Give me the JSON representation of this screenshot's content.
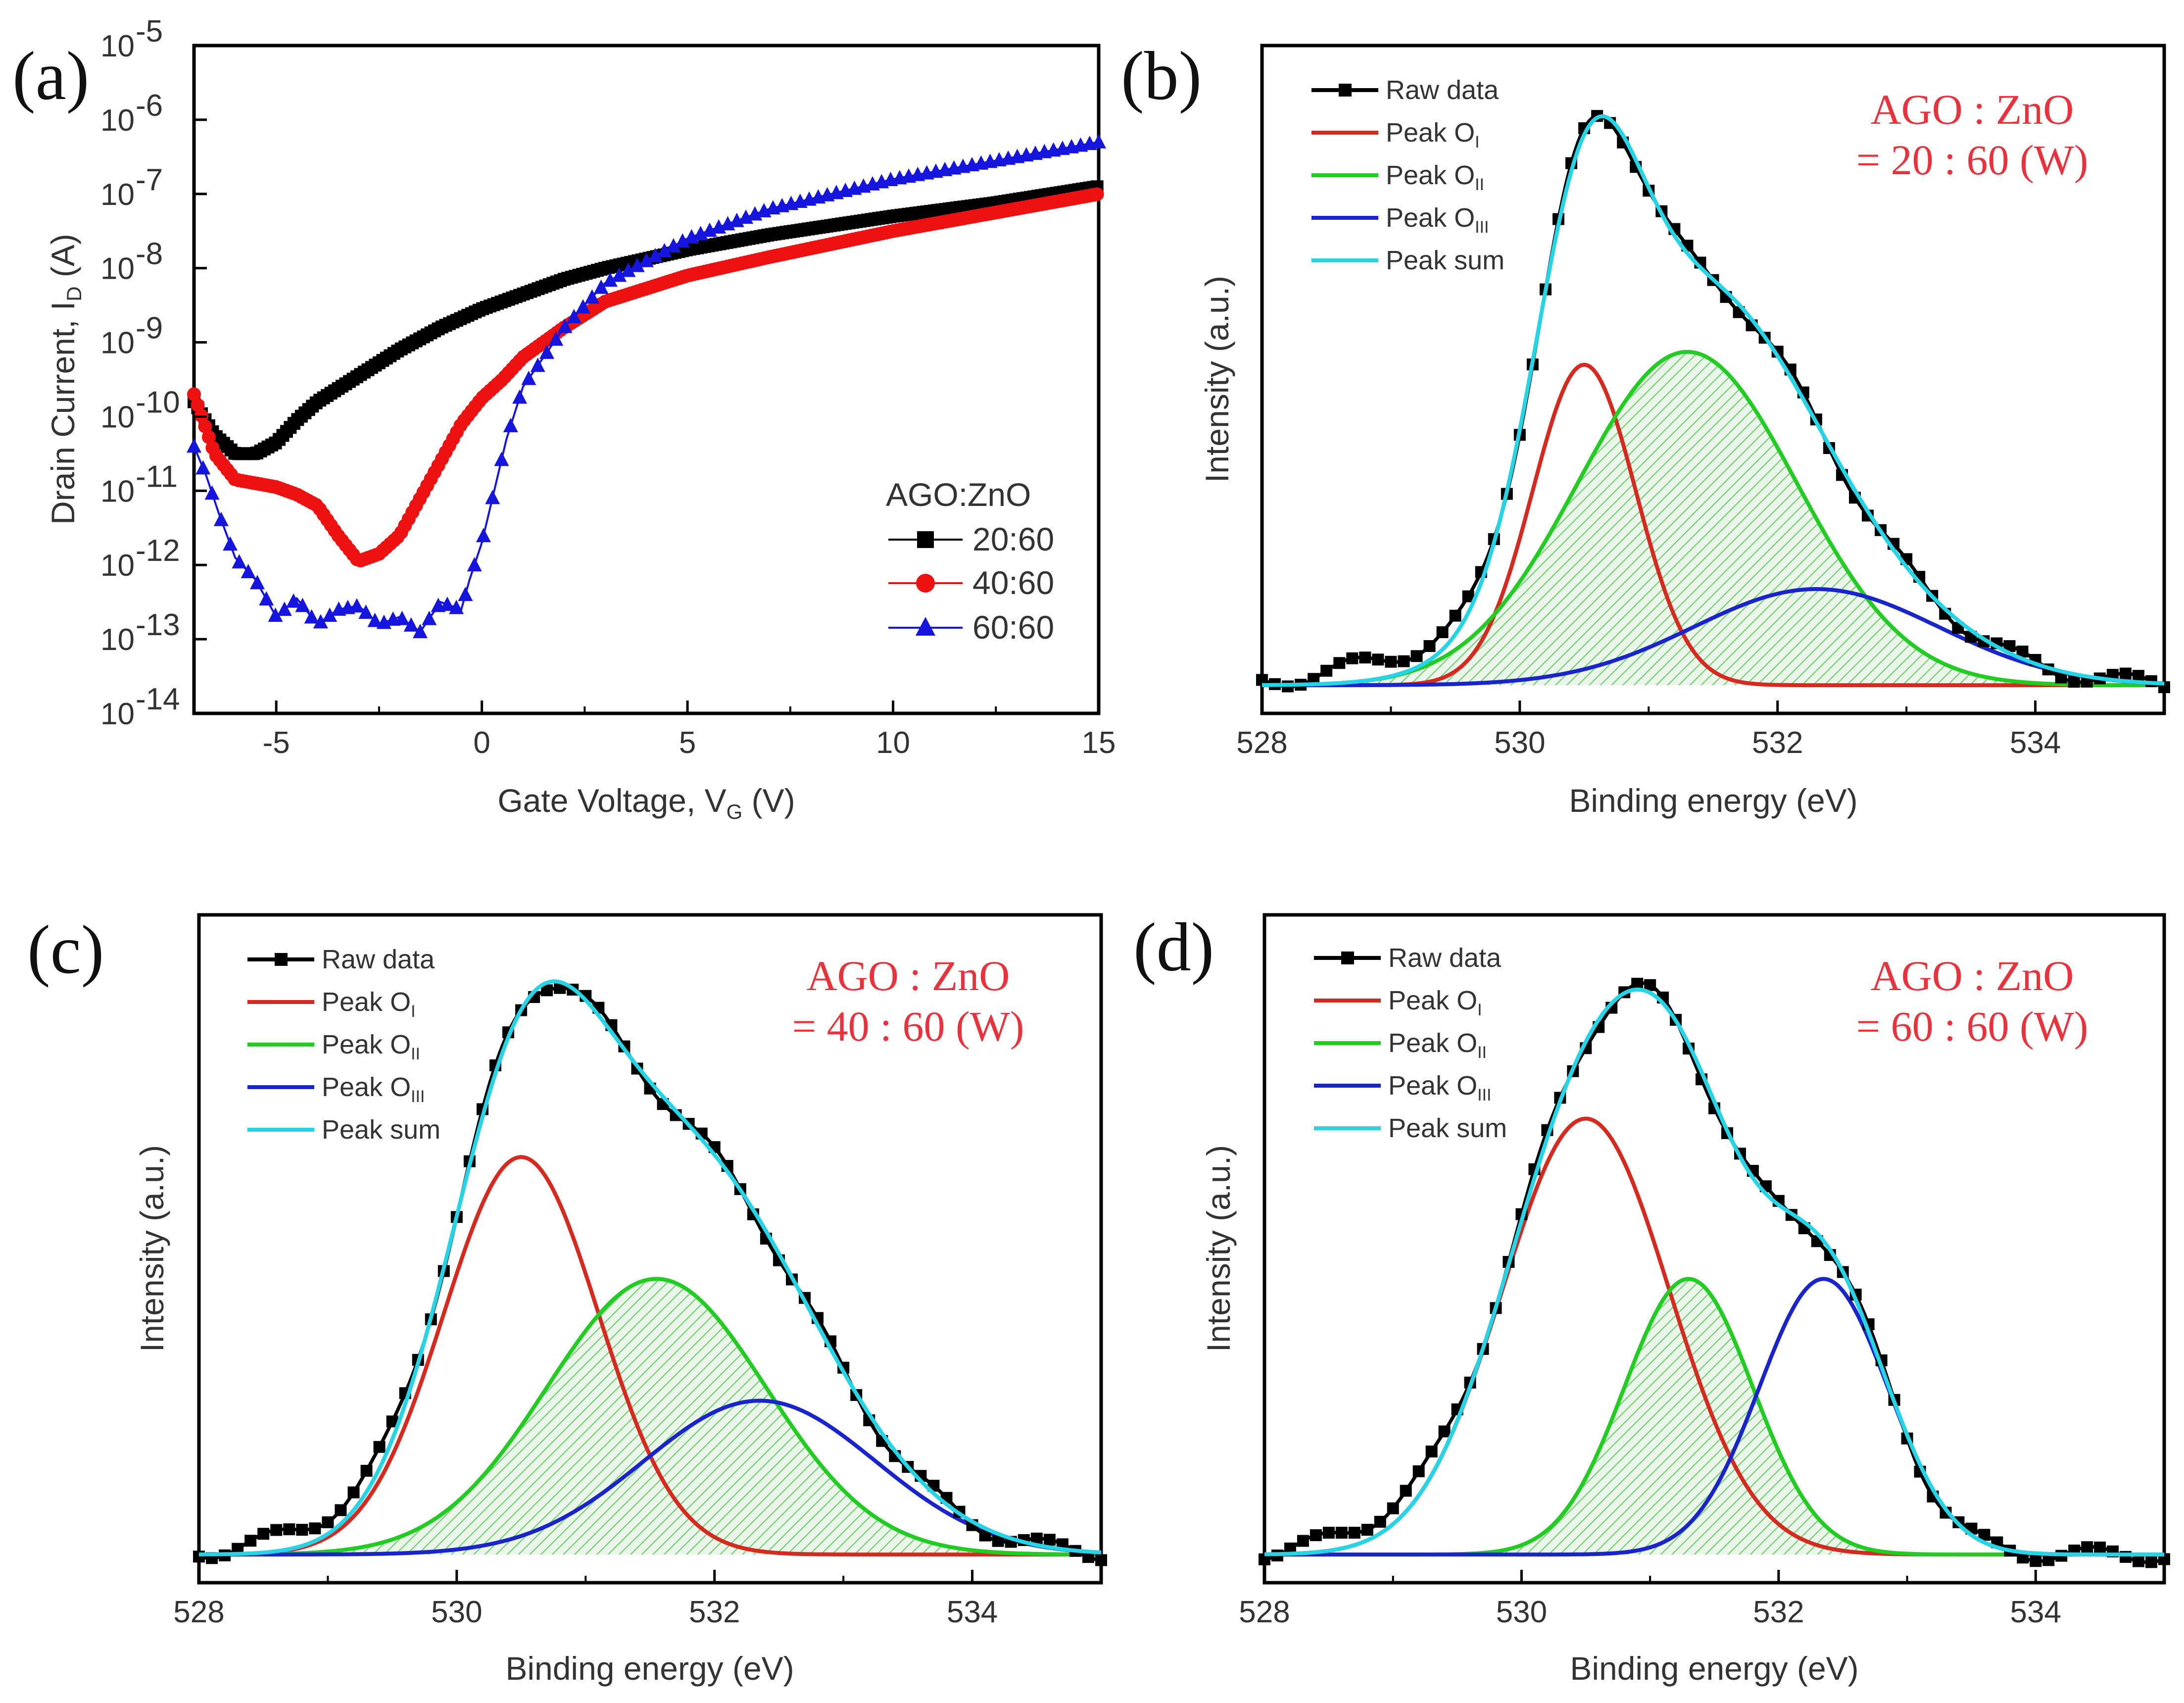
{
  "colors": {
    "raw": "#000000",
    "peak1": "#d42a1f",
    "peak2": "#22cc22",
    "peak3": "#1a25c9",
    "sum": "#26d4e6",
    "annotation": "#e8323c",
    "red_series": "#ee1111",
    "blue_series": "#1515dd",
    "hatch": "#7fcf7f"
  },
  "chart_data": [
    {
      "id": "a",
      "type": "line",
      "panel_label": "(a)",
      "scale_y": "log",
      "xlabel_main": "Gate Voltage, V",
      "xlabel_sub": "G",
      "xlabel_end": " (V)",
      "ylabel_main": "Drain Current, I",
      "ylabel_sub": "D",
      "ylabel_end": " (A)",
      "xlim": [
        -7,
        15
      ],
      "ylim_exp": [
        -14,
        -5
      ],
      "x_ticks": [
        -5,
        0,
        5,
        10,
        15
      ],
      "x_tick_labels": [
        "-5",
        "0",
        "5",
        "10",
        "15"
      ],
      "y_tick_exponents": [
        -14,
        -13,
        -12,
        -11,
        -10,
        -9,
        -8,
        -7,
        -6,
        -5
      ],
      "y_tick_base": "10",
      "y_tick_exp_labels": [
        "-14",
        "-13",
        "-12",
        "-11",
        "-10",
        "-9",
        "-8",
        "-7",
        "-6",
        "-5"
      ],
      "legend_title": "AGO:ZnO",
      "series": [
        {
          "name": "20:60",
          "marker": "square",
          "color": "#000000",
          "points": [
            [
              -7,
              -9.8
            ],
            [
              -6.5,
              -10.25
            ],
            [
              -6,
              -10.5
            ],
            [
              -5.5,
              -10.5
            ],
            [
              -5,
              -10.35
            ],
            [
              -4.5,
              -10.05
            ],
            [
              -4,
              -9.8
            ],
            [
              -3,
              -9.45
            ],
            [
              -2,
              -9.1
            ],
            [
              -1,
              -8.8
            ],
            [
              0,
              -8.55
            ],
            [
              1,
              -8.35
            ],
            [
              2,
              -8.15
            ],
            [
              3,
              -8.0
            ],
            [
              5,
              -7.75
            ],
            [
              7,
              -7.55
            ],
            [
              10,
              -7.3
            ],
            [
              12.5,
              -7.12
            ],
            [
              15,
              -6.9
            ]
          ]
        },
        {
          "name": "40:60",
          "marker": "circle",
          "color": "#ee1111",
          "points": [
            [
              -7,
              -9.7
            ],
            [
              -6.5,
              -10.5
            ],
            [
              -6,
              -10.85
            ],
            [
              -5,
              -10.95
            ],
            [
              -4.5,
              -11.05
            ],
            [
              -4,
              -11.2
            ],
            [
              -3.5,
              -11.6
            ],
            [
              -3,
              -11.95
            ],
            [
              -2.5,
              -11.85
            ],
            [
              -2,
              -11.6
            ],
            [
              -1.5,
              -11.1
            ],
            [
              -1,
              -10.6
            ],
            [
              -0.5,
              -10.1
            ],
            [
              0,
              -9.75
            ],
            [
              0.5,
              -9.5
            ],
            [
              1,
              -9.2
            ],
            [
              2,
              -8.8
            ],
            [
              3,
              -8.45
            ],
            [
              5,
              -8.1
            ],
            [
              7,
              -7.85
            ],
            [
              10,
              -7.5
            ],
            [
              12.5,
              -7.25
            ],
            [
              15,
              -7.0
            ]
          ]
        },
        {
          "name": "60:60",
          "marker": "triangle",
          "color": "#1515dd",
          "points": [
            [
              -7,
              -10.4
            ],
            [
              -6.7,
              -10.8
            ],
            [
              -6.4,
              -11.3
            ],
            [
              -6,
              -11.9
            ],
            [
              -5.5,
              -12.2
            ],
            [
              -5,
              -12.7
            ],
            [
              -4.5,
              -12.45
            ],
            [
              -4,
              -12.8
            ],
            [
              -3.5,
              -12.6
            ],
            [
              -3,
              -12.55
            ],
            [
              -2.5,
              -12.8
            ],
            [
              -2,
              -12.7
            ],
            [
              -1.5,
              -12.9
            ],
            [
              -1,
              -12.5
            ],
            [
              -0.5,
              -12.6
            ],
            [
              -0.3,
              -12.2
            ],
            [
              0,
              -11.7
            ],
            [
              0.3,
              -11.0
            ],
            [
              0.6,
              -10.3
            ],
            [
              1,
              -9.6
            ],
            [
              2,
              -8.8
            ],
            [
              3,
              -8.2
            ],
            [
              5,
              -7.6
            ],
            [
              7,
              -7.2
            ],
            [
              10,
              -6.8
            ],
            [
              12.5,
              -6.55
            ],
            [
              15,
              -6.3
            ]
          ]
        }
      ]
    },
    {
      "id": "b",
      "type": "line",
      "panel_label": "(b)",
      "xlabel": "Binding energy (eV)",
      "ylabel": "Intensity (a.u.)",
      "xlim": [
        528,
        535
      ],
      "x_ticks": [
        528,
        530,
        532,
        534
      ],
      "x_tick_labels": [
        "528",
        "530",
        "532",
        "534"
      ],
      "annotation_line1": "AGO : ZnO",
      "annotation_line2": "= 20 : 60 (W)",
      "baseline": 0.03,
      "peaks": [
        {
          "name": "O_I",
          "center": 530.5,
          "amplitude": 0.5,
          "sigma": 0.4
        },
        {
          "name": "O_II",
          "center": 531.3,
          "amplitude": 0.52,
          "sigma": 0.85
        },
        {
          "name": "O_III",
          "center": 532.3,
          "amplitude": 0.15,
          "sigma": 0.95
        }
      ]
    },
    {
      "id": "c",
      "type": "line",
      "panel_label": "(c)",
      "xlabel": "Binding energy (eV)",
      "ylabel": "Intensity (a.u.)",
      "xlim": [
        528,
        535
      ],
      "x_ticks": [
        528,
        530,
        532,
        534
      ],
      "x_tick_labels": [
        "528",
        "530",
        "532",
        "534"
      ],
      "annotation_line1": "AGO : ZnO",
      "annotation_line2": "= 40 : 60 (W)",
      "baseline": 0.03,
      "peaks": [
        {
          "name": "O_I",
          "center": 530.5,
          "amplitude": 0.62,
          "sigma": 0.6
        },
        {
          "name": "O_II",
          "center": 531.55,
          "amplitude": 0.43,
          "sigma": 0.85
        },
        {
          "name": "O_III",
          "center": 532.35,
          "amplitude": 0.24,
          "sigma": 0.9
        }
      ]
    },
    {
      "id": "d",
      "type": "line",
      "panel_label": "(d)",
      "xlabel": "Binding energy (eV)",
      "ylabel": "Intensity (a.u.)",
      "xlim": [
        528,
        535
      ],
      "x_ticks": [
        528,
        530,
        532,
        534
      ],
      "x_tick_labels": [
        "528",
        "530",
        "532",
        "534"
      ],
      "annotation_line1": "AGO : ZnO",
      "annotation_line2": "= 60 : 60 (W)",
      "baseline": 0.03,
      "peaks": [
        {
          "name": "O_I",
          "center": 530.5,
          "amplitude": 0.68,
          "sigma": 0.65
        },
        {
          "name": "O_II",
          "center": 531.3,
          "amplitude": 0.43,
          "sigma": 0.5
        },
        {
          "name": "O_III",
          "center": 532.35,
          "amplitude": 0.43,
          "sigma": 0.5
        }
      ]
    }
  ],
  "xps_legend": [
    {
      "label": "Raw data",
      "sub": "",
      "key": "raw"
    },
    {
      "label": "Peak O",
      "sub": "I",
      "key": "peak1"
    },
    {
      "label": "Peak O",
      "sub": "II",
      "key": "peak2"
    },
    {
      "label": "Peak O",
      "sub": "III",
      "key": "peak3"
    },
    {
      "label": "Peak sum",
      "sub": "",
      "key": "sum"
    }
  ]
}
